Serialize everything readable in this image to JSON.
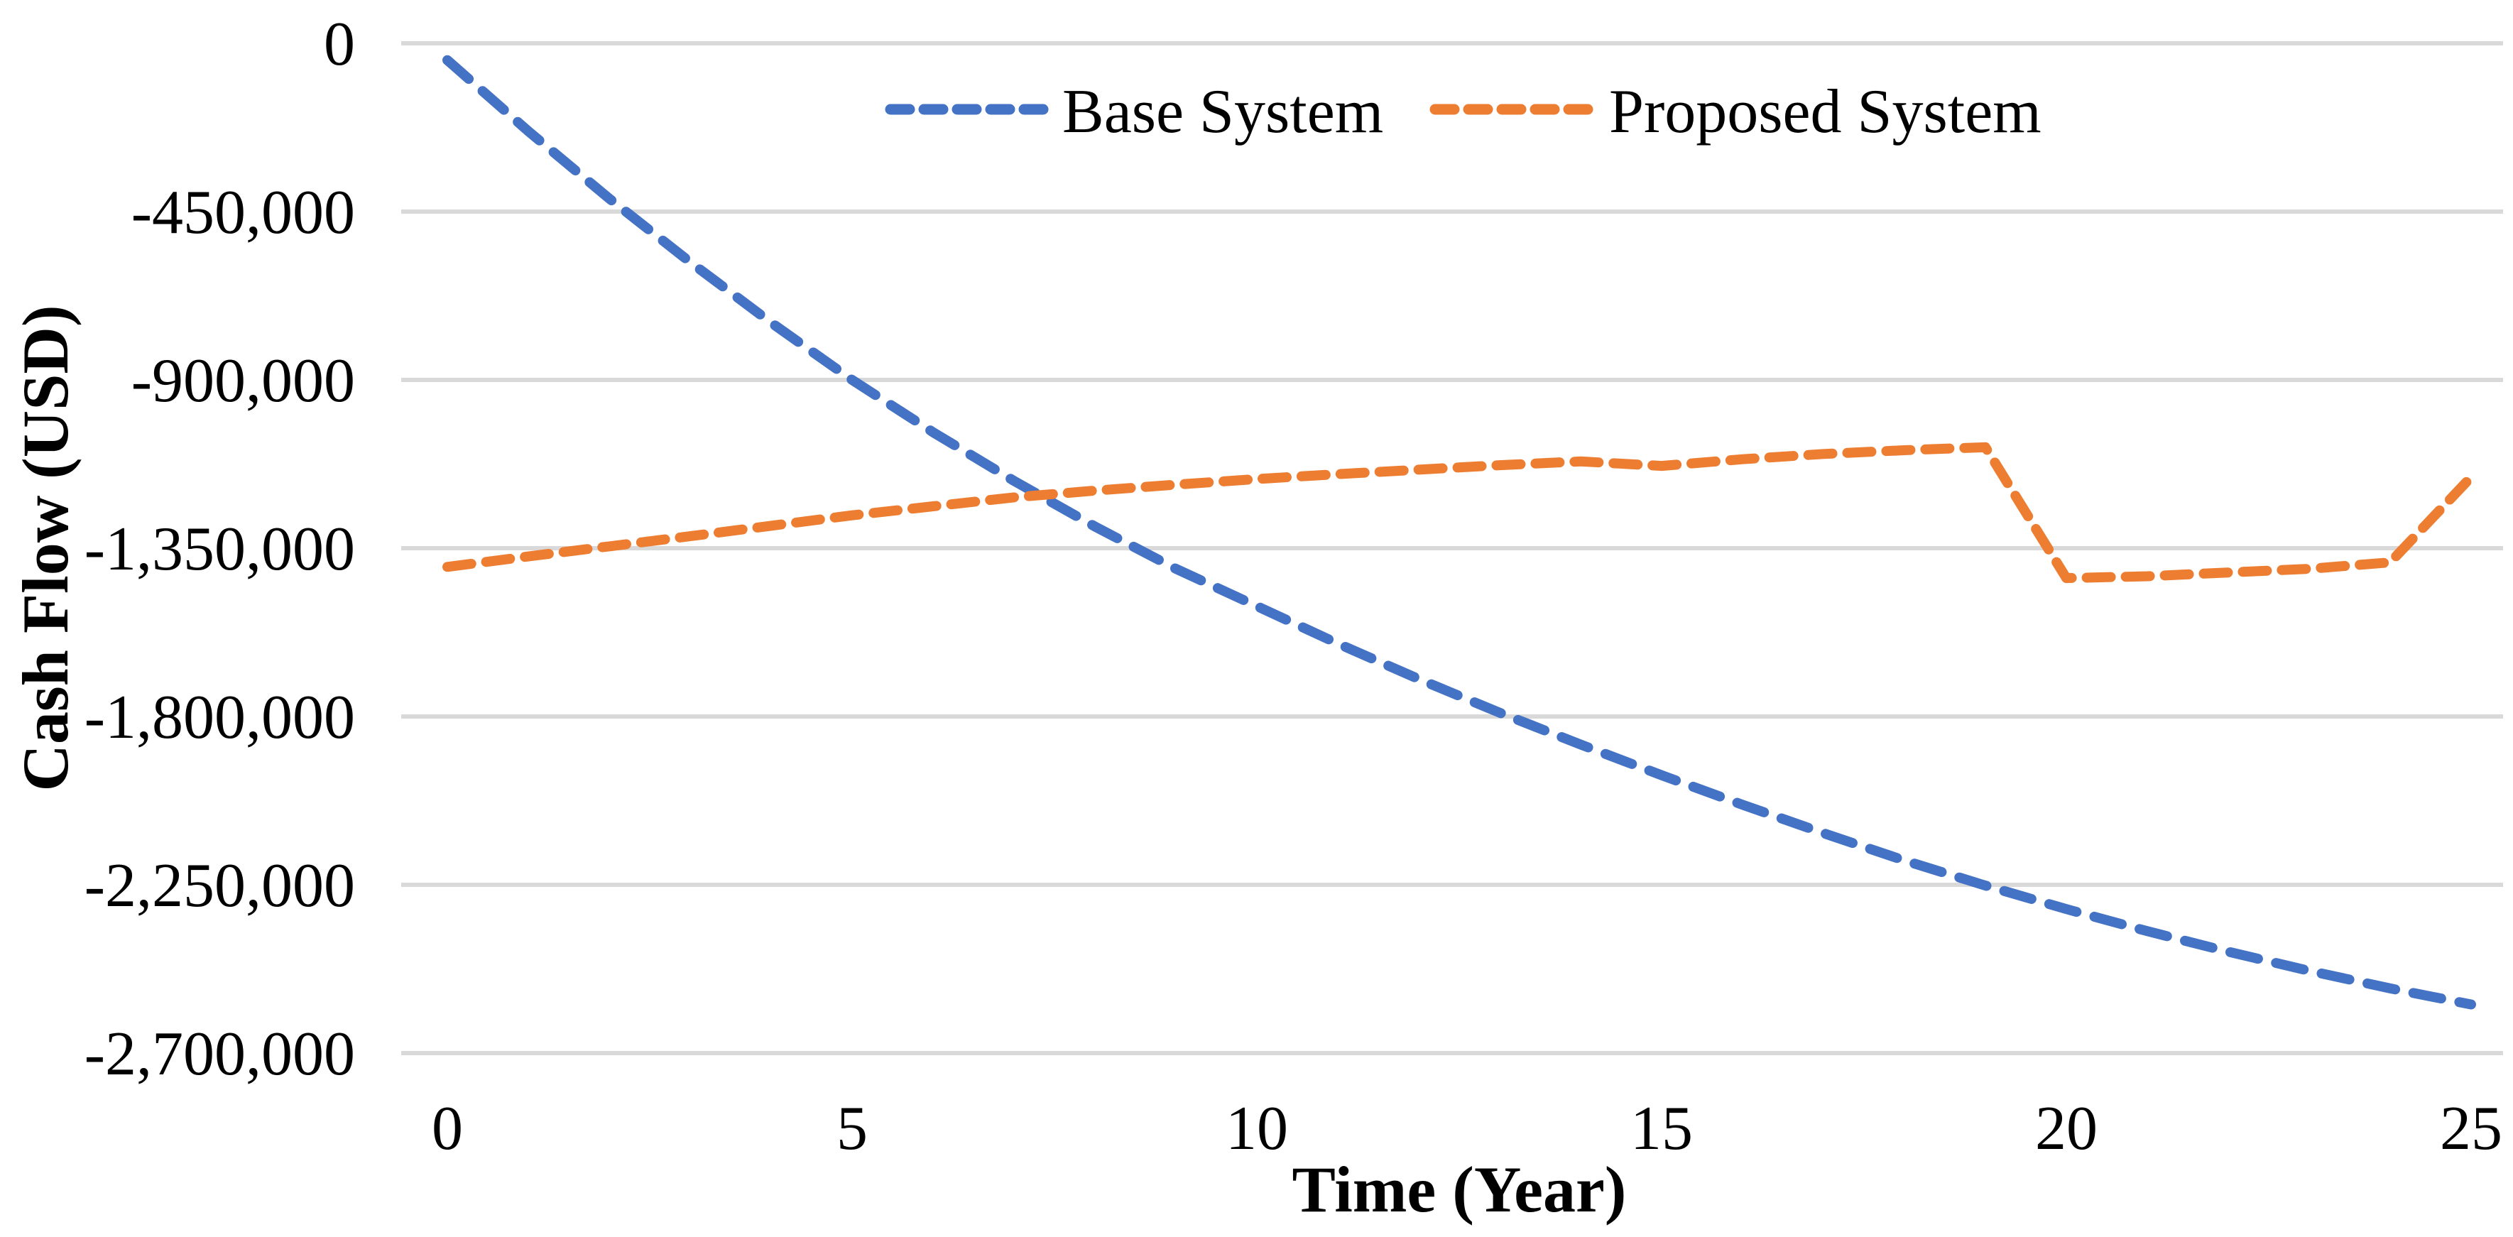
{
  "chart_data": {
    "type": "line",
    "title": "",
    "xlabel": "Time (Year)",
    "ylabel": "Cash Flow (USD)",
    "xlim": [
      0,
      25
    ],
    "ylim": [
      -2700000,
      0
    ],
    "grid": "horizontal",
    "legend_position": "top-center",
    "x": [
      0,
      1,
      2,
      3,
      4,
      5,
      6,
      7,
      8,
      9,
      10,
      11,
      12,
      13,
      14,
      15,
      16,
      17,
      18,
      19,
      20,
      21,
      22,
      23,
      24,
      25
    ],
    "x_tick_values": [
      0,
      5,
      10,
      15,
      20,
      25
    ],
    "x_tick_labels": {
      "0": "0",
      "1": "5",
      "2": "10",
      "3": "15",
      "4": "20",
      "5": "25"
    },
    "y_tick_values": [
      0,
      -450000,
      -900000,
      -1350000,
      -1800000,
      -2250000,
      -2700000
    ],
    "y_tick_labels": {
      "0": "0",
      "1": "-450,000",
      "2": "-900,000",
      "3": "-1,350,000",
      "4": "-1,800,000",
      "5": "-2,250,000",
      "6": "-2,700,000"
    },
    "series": [
      {
        "name": "Base System",
        "color": "#4472C4",
        "line_style": "dashed",
        "values": [
          -45000,
          -235000,
          -415000,
          -585000,
          -747000,
          -900000,
          -1040000,
          -1170000,
          -1292000,
          -1405000,
          -1505000,
          -1605000,
          -1700000,
          -1790000,
          -1875000,
          -1957000,
          -2036000,
          -2112000,
          -2185000,
          -2252000,
          -2315000,
          -2374000,
          -2429000,
          -2480000,
          -2527000,
          -2570000
        ]
      },
      {
        "name": "Proposed System",
        "color": "#ED7D31",
        "line_style": "dashed",
        "values": [
          -1400000,
          -1372000,
          -1345000,
          -1318000,
          -1290000,
          -1262000,
          -1238000,
          -1214000,
          -1196000,
          -1180000,
          -1165000,
          -1152000,
          -1140000,
          -1128000,
          -1118000,
          -1130000,
          -1112000,
          -1098000,
          -1088000,
          -1080000,
          -1430000,
          -1425000,
          -1415000,
          -1405000,
          -1388000,
          -1160000
        ]
      }
    ]
  },
  "colors": {
    "gridline": "#D9D9D9",
    "background": "#FFFFFF",
    "text": "#000000"
  }
}
